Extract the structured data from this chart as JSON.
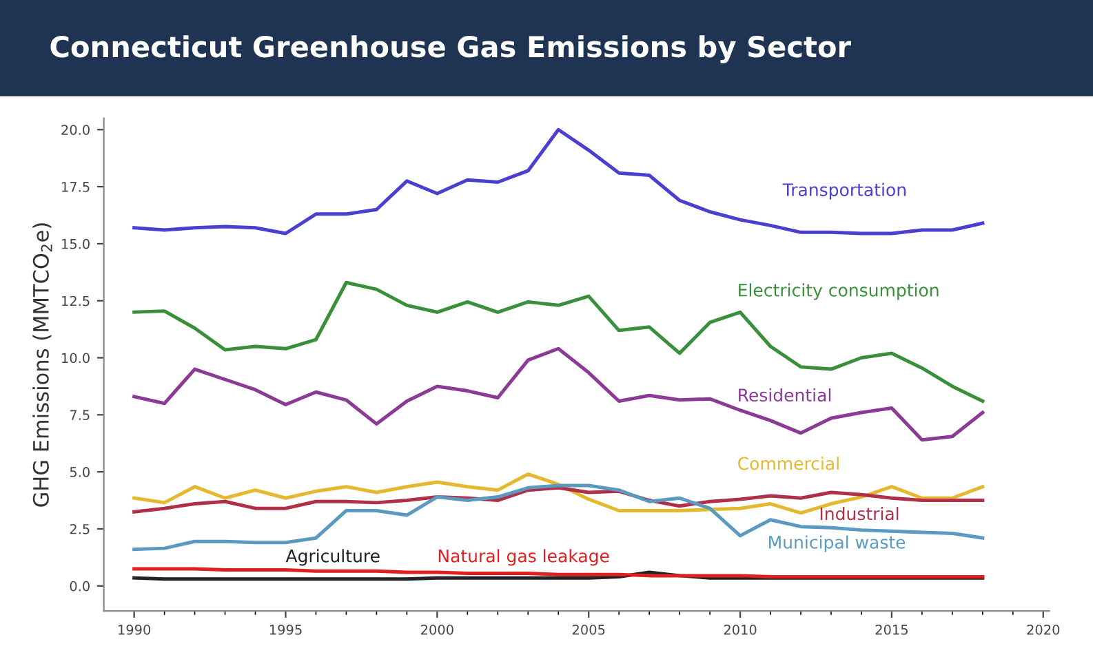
{
  "chart_data": {
    "type": "line",
    "title": "Connecticut Greenhouse Gas Emissions by Sector",
    "ylabel": "GHG Emissions (MMTCO$_{2}$e)",
    "x": [
      1990,
      1991,
      1992,
      1993,
      1994,
      1995,
      1996,
      1997,
      1998,
      1999,
      2000,
      2001,
      2002,
      2003,
      2004,
      2005,
      2006,
      2007,
      2008,
      2009,
      2010,
      2011,
      2012,
      2013,
      2014,
      2015,
      2016,
      2017,
      2018
    ],
    "xlim": [
      1989,
      2020.2
    ],
    "xticks": [
      1990,
      1995,
      2000,
      2005,
      2010,
      2015,
      2020
    ],
    "ylim": [
      -1.1,
      20.5
    ],
    "yticks": [
      {
        "value": 0,
        "label": "0.0"
      },
      {
        "value": 2.5,
        "label": "2.5"
      },
      {
        "value": 5,
        "label": "5.0"
      },
      {
        "value": 7.5,
        "label": "7.5"
      },
      {
        "value": 10,
        "label": "10.0"
      },
      {
        "value": 12.5,
        "label": "12.5"
      },
      {
        "value": 15,
        "label": "15.0"
      },
      {
        "value": 17.5,
        "label": "17.5"
      },
      {
        "value": 20,
        "label": "20.0"
      }
    ],
    "grid": false,
    "legend": false,
    "series": [
      {
        "name": "Transportation",
        "color": "#4b3fd0",
        "values": [
          15.7,
          15.6,
          15.7,
          15.75,
          15.7,
          15.45,
          16.3,
          16.3,
          16.5,
          17.75,
          17.2,
          17.8,
          17.7,
          18.2,
          20.0,
          19.1,
          18.1,
          18.0,
          16.9,
          16.4,
          16.05,
          15.8,
          15.5,
          15.5,
          15.45,
          15.45,
          15.6,
          15.6,
          15.9
        ]
      },
      {
        "name": "Electricity consumption",
        "color": "#3a8f3a",
        "values": [
          12.0,
          12.05,
          11.3,
          10.35,
          10.5,
          10.4,
          10.8,
          13.3,
          13.0,
          12.3,
          12.0,
          12.45,
          12.0,
          12.45,
          12.3,
          12.7,
          11.2,
          11.35,
          10.2,
          11.55,
          12.0,
          10.5,
          9.6,
          9.5,
          10.0,
          10.2,
          9.55,
          8.75,
          8.1
        ]
      },
      {
        "name": "Residential",
        "color": "#8b3a96",
        "values": [
          8.3,
          8.0,
          9.5,
          9.05,
          8.6,
          7.95,
          8.5,
          8.15,
          7.1,
          8.1,
          8.75,
          8.55,
          8.25,
          9.9,
          10.4,
          9.35,
          8.1,
          8.35,
          8.15,
          8.2,
          7.7,
          7.25,
          6.7,
          7.35,
          7.6,
          7.8,
          6.4,
          6.55,
          7.6
        ]
      },
      {
        "name": "Commercial",
        "color": "#e6b830",
        "values": [
          3.85,
          3.65,
          4.35,
          3.85,
          4.2,
          3.85,
          4.15,
          4.35,
          4.1,
          4.35,
          4.55,
          4.35,
          4.2,
          4.9,
          4.45,
          3.8,
          3.3,
          3.3,
          3.3,
          3.35,
          3.4,
          3.6,
          3.2,
          3.6,
          3.9,
          4.35,
          3.85,
          3.85,
          4.35
        ]
      },
      {
        "name": "Industrial",
        "color": "#b0304a",
        "values": [
          3.25,
          3.4,
          3.6,
          3.7,
          3.4,
          3.4,
          3.7,
          3.7,
          3.65,
          3.75,
          3.9,
          3.85,
          3.75,
          4.2,
          4.3,
          4.1,
          4.15,
          3.75,
          3.5,
          3.7,
          3.8,
          3.95,
          3.85,
          4.1,
          4.0,
          3.85,
          3.75,
          3.75,
          3.75
        ]
      },
      {
        "name": "Municipal waste",
        "color": "#5a9ac0",
        "values": [
          1.6,
          1.65,
          1.95,
          1.95,
          1.9,
          1.9,
          2.1,
          3.3,
          3.3,
          3.1,
          3.9,
          3.75,
          3.9,
          4.3,
          4.4,
          4.4,
          4.2,
          3.7,
          3.85,
          3.4,
          2.2,
          2.9,
          2.6,
          2.55,
          2.45,
          2.4,
          2.35,
          2.3,
          2.1
        ]
      },
      {
        "name": "Agriculture",
        "color": "#222222",
        "values": [
          0.35,
          0.3,
          0.3,
          0.3,
          0.3,
          0.3,
          0.3,
          0.3,
          0.3,
          0.3,
          0.35,
          0.35,
          0.35,
          0.35,
          0.35,
          0.35,
          0.4,
          0.6,
          0.45,
          0.35,
          0.35,
          0.35,
          0.35,
          0.35,
          0.35,
          0.35,
          0.35,
          0.35,
          0.35
        ]
      },
      {
        "name": "Natural gas leakage",
        "color": "#e02020",
        "values": [
          0.75,
          0.75,
          0.75,
          0.7,
          0.7,
          0.7,
          0.65,
          0.65,
          0.65,
          0.6,
          0.6,
          0.55,
          0.55,
          0.55,
          0.5,
          0.5,
          0.5,
          0.45,
          0.45,
          0.45,
          0.45,
          0.4,
          0.4,
          0.4,
          0.4,
          0.4,
          0.4,
          0.4,
          0.4
        ]
      }
    ]
  }
}
